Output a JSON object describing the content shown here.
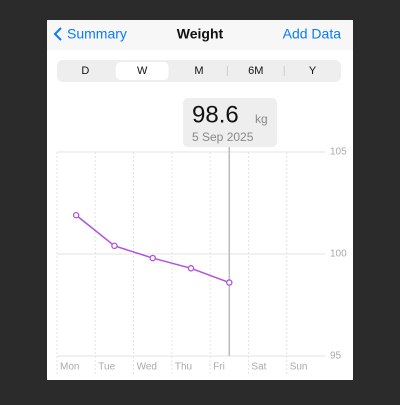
{
  "nav": {
    "back": "Summary",
    "title": "Weight",
    "action": "Add Data"
  },
  "control": {
    "options": [
      "D",
      "W",
      "M",
      "6M",
      "Y"
    ],
    "selected": "W"
  },
  "callout": {
    "unit": "kg",
    "date": "5 Sep 2025"
  },
  "chart_data": {
    "type": "line",
    "categories": [
      "Mon",
      "Tue",
      "Wed",
      "Thu",
      "Fri",
      "Sat",
      "Sun"
    ],
    "values": [
      101.9,
      100.4,
      99.8,
      99.3,
      98.6,
      null,
      null
    ],
    "color": "#af52de",
    "ylim": [
      95,
      105
    ],
    "yticks": [
      95,
      100,
      105
    ],
    "grid": true
  }
}
